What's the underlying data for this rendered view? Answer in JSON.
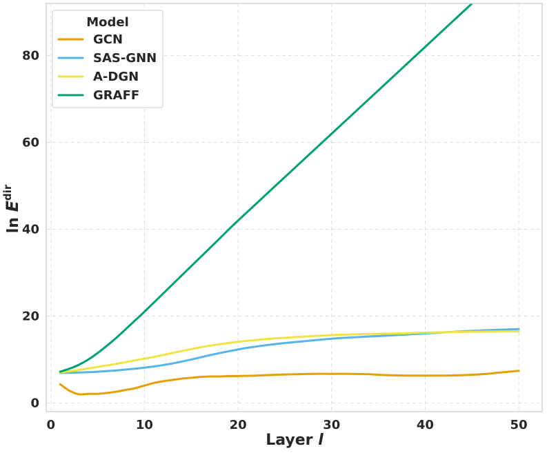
{
  "chart_data": {
    "type": "line",
    "xlabel": "Layer",
    "xlabel_var": "l",
    "ylabel_prefix": "ln",
    "ylabel_var": "E",
    "ylabel_sup": "dir",
    "xlim": [
      -0.5,
      52.5
    ],
    "ylim": [
      -2,
      92
    ],
    "xticks": [
      0,
      10,
      20,
      30,
      40,
      50
    ],
    "yticks": [
      0,
      20,
      40,
      60,
      80
    ],
    "grid": true,
    "legend": {
      "title": "Model",
      "placement": "top-left"
    },
    "series": [
      {
        "name": "GCN",
        "color": "#E69F00",
        "x": [
          1,
          2,
          3,
          4,
          5,
          6,
          7,
          8,
          9,
          10,
          11,
          12,
          13,
          14,
          15,
          16,
          17,
          18,
          19,
          20,
          22,
          24,
          26,
          28,
          30,
          32,
          34,
          36,
          38,
          40,
          42,
          44,
          46,
          48,
          50
        ],
        "y": [
          4.3,
          2.8,
          2.0,
          2.1,
          2.1,
          2.3,
          2.6,
          3.0,
          3.4,
          4.0,
          4.6,
          5.0,
          5.3,
          5.6,
          5.8,
          6.0,
          6.1,
          6.1,
          6.2,
          6.2,
          6.3,
          6.5,
          6.6,
          6.7,
          6.7,
          6.7,
          6.6,
          6.4,
          6.3,
          6.3,
          6.3,
          6.4,
          6.6,
          7.0,
          7.4
        ]
      },
      {
        "name": "SAS-GNN",
        "color": "#56B4E9",
        "x": [
          1,
          3,
          5,
          7,
          9,
          11,
          13,
          15,
          17,
          19,
          21,
          23,
          25,
          27,
          30,
          33,
          36,
          40,
          45,
          50
        ],
        "y": [
          6.9,
          7.0,
          7.2,
          7.5,
          7.9,
          8.4,
          9.1,
          10.0,
          11.0,
          11.9,
          12.7,
          13.3,
          13.8,
          14.2,
          14.8,
          15.2,
          15.5,
          16.0,
          16.6,
          17.0
        ]
      },
      {
        "name": "A-DGN",
        "color": "#F0E442",
        "x": [
          1,
          3,
          5,
          7,
          9,
          11,
          13,
          15,
          17,
          19,
          21,
          23,
          25,
          28,
          31,
          34,
          37,
          40,
          45,
          50
        ],
        "y": [
          7.0,
          7.6,
          8.3,
          9.0,
          9.8,
          10.6,
          11.5,
          12.4,
          13.2,
          13.8,
          14.3,
          14.7,
          15.0,
          15.4,
          15.7,
          15.9,
          16.0,
          16.2,
          16.4,
          16.5
        ]
      },
      {
        "name": "GRAFF",
        "color": "#009E73",
        "x": [
          1,
          2,
          3,
          4,
          5,
          6,
          7,
          8,
          9,
          10,
          12,
          14,
          16,
          18,
          20,
          25,
          30,
          35,
          40,
          45
        ],
        "y": [
          7.2,
          7.9,
          8.8,
          10.0,
          11.5,
          13.2,
          15.0,
          17.0,
          19.0,
          21.0,
          25.2,
          29.4,
          33.6,
          37.8,
          42.0,
          52.0,
          62.0,
          72.0,
          82.0,
          92.0
        ]
      }
    ]
  }
}
